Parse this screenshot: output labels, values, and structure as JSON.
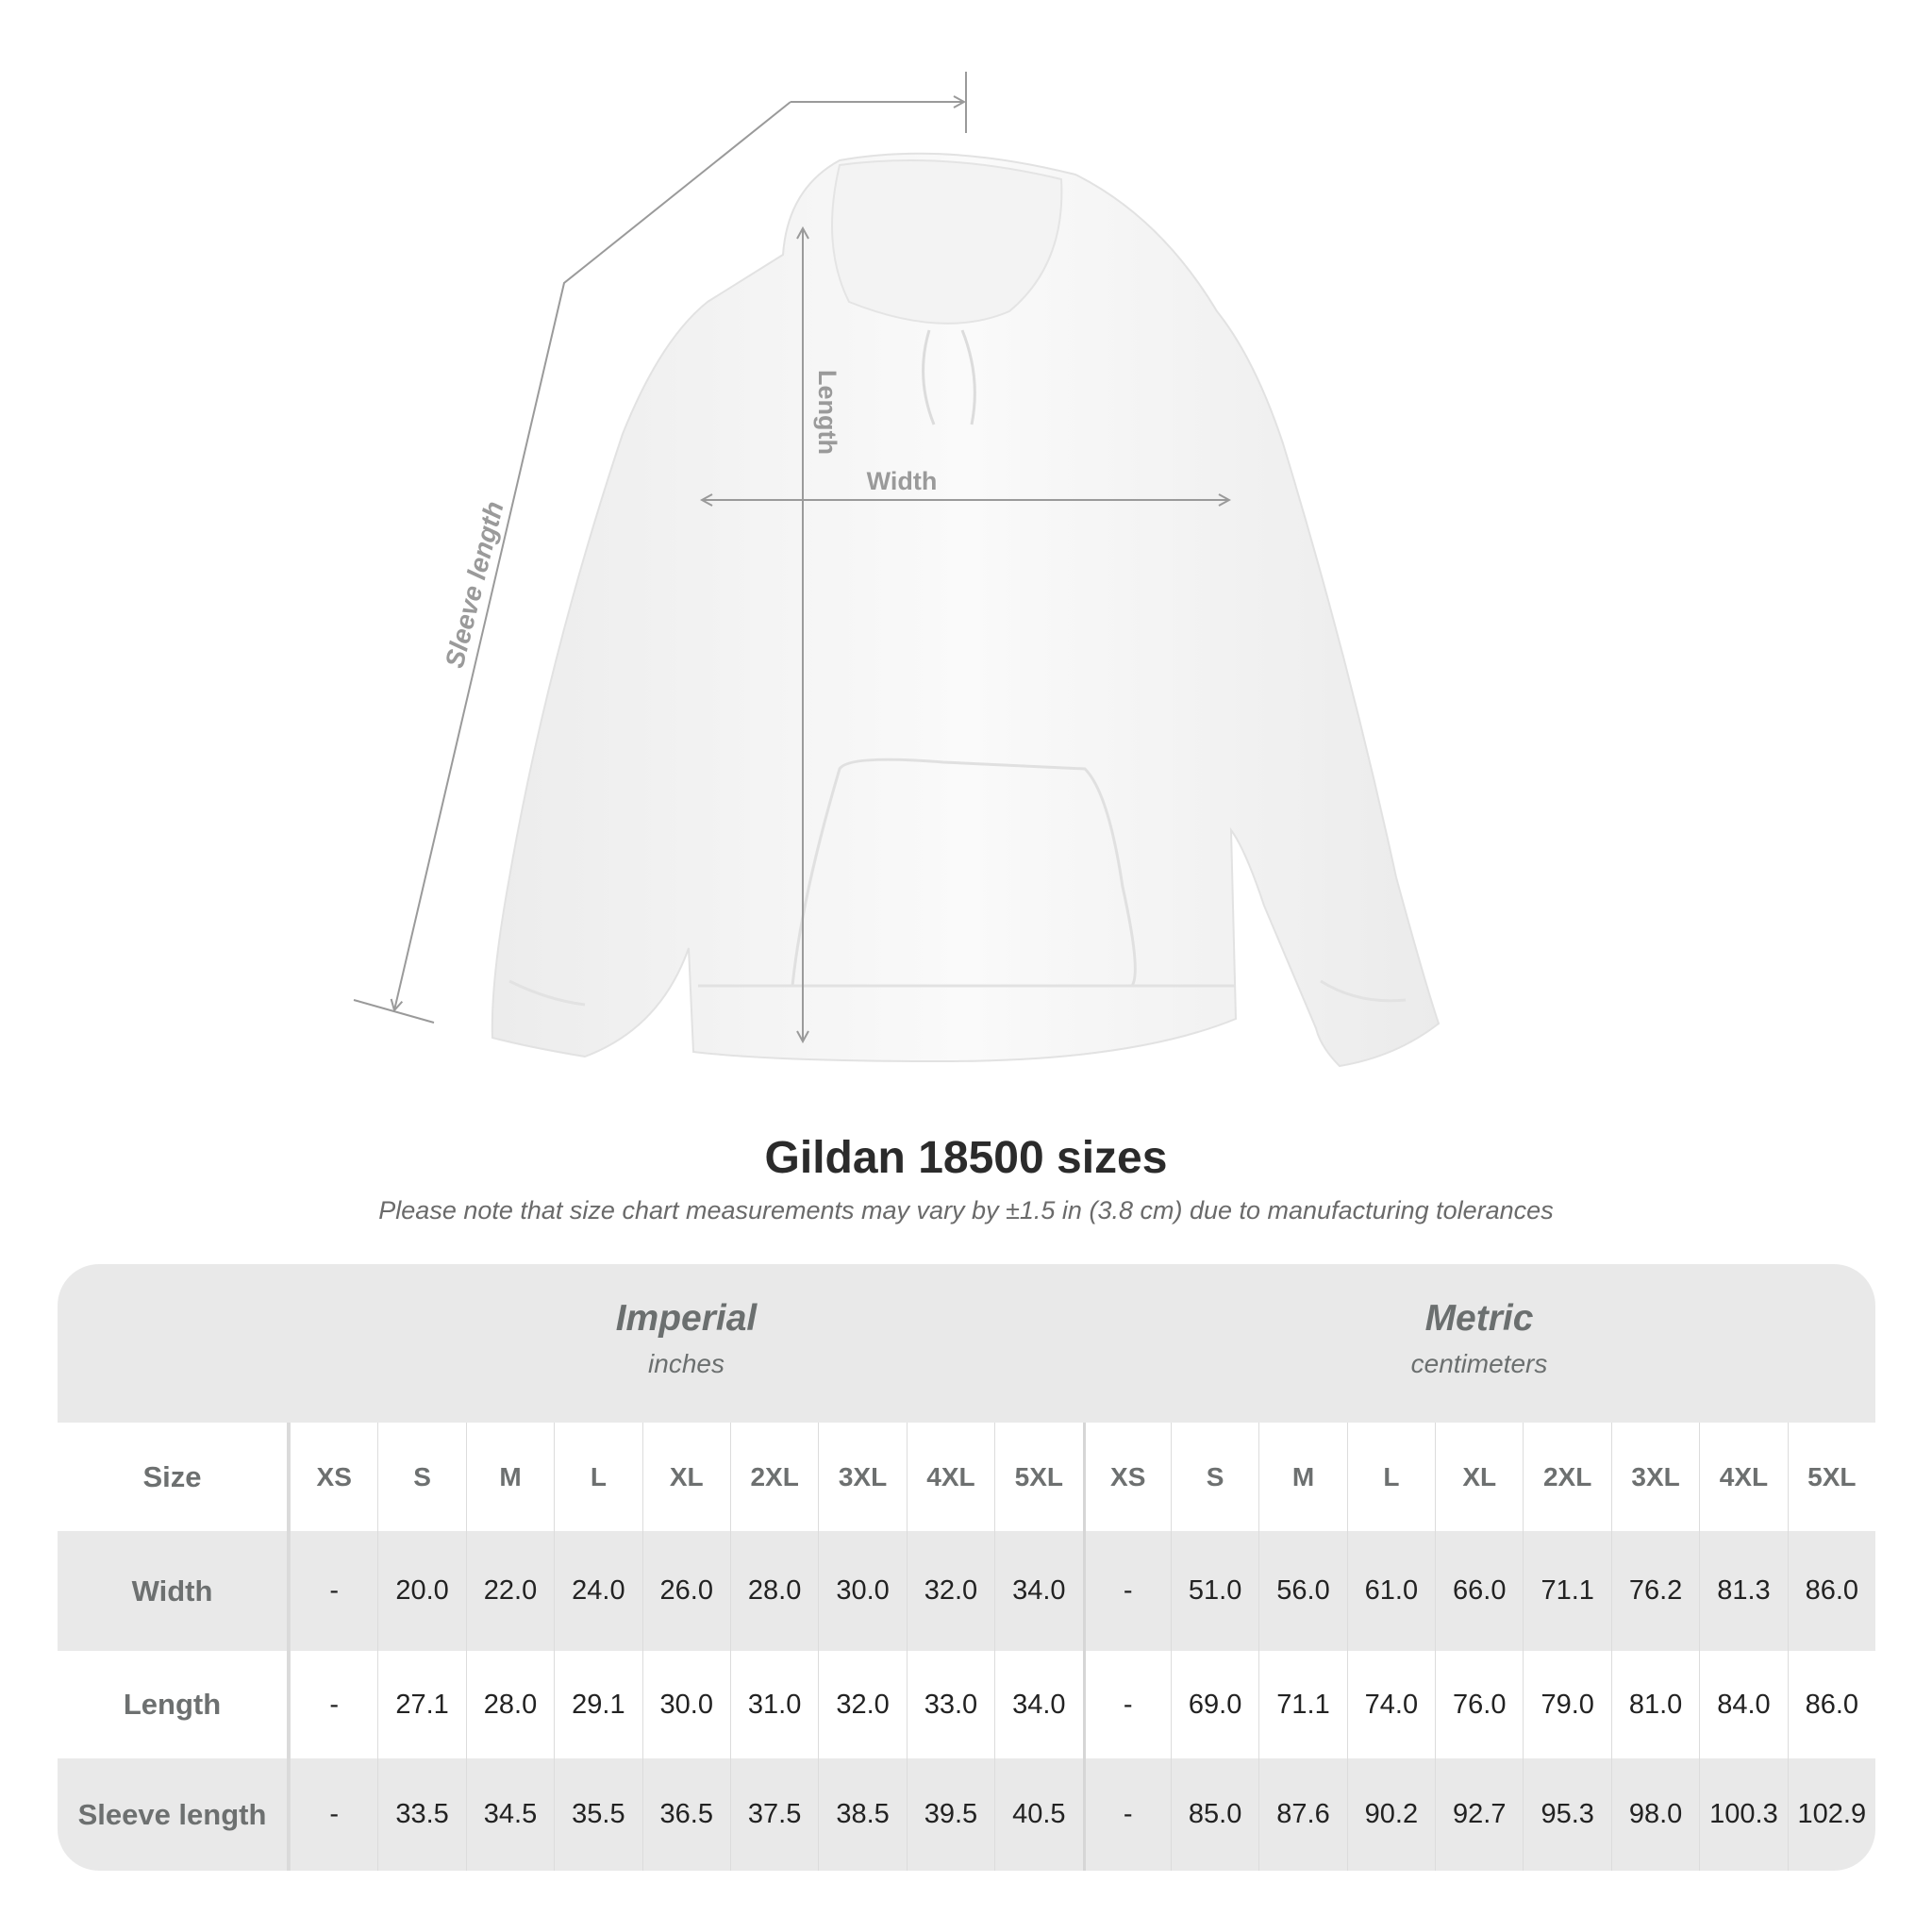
{
  "diagram_labels": {
    "length": "Length",
    "width": "Width",
    "sleeve_length": "Sleeve length"
  },
  "title": "Gildan 18500 sizes",
  "subtitle": "Please note that size chart measurements may vary by ±1.5 in (3.8 cm) due to manufacturing tolerances",
  "imperial": {
    "name": "Imperial",
    "unit": "inches"
  },
  "metric": {
    "name": "Metric",
    "unit": "centimeters"
  },
  "header_label": "Size",
  "sizes": [
    "XS",
    "S",
    "M",
    "L",
    "XL",
    "2XL",
    "3XL",
    "4XL",
    "5XL"
  ],
  "rows": [
    {
      "label": "Width",
      "imperial": [
        "-",
        "20.0",
        "22.0",
        "24.0",
        "26.0",
        "28.0",
        "30.0",
        "32.0",
        "34.0"
      ],
      "metric": [
        "-",
        "51.0",
        "56.0",
        "61.0",
        "66.0",
        "71.1",
        "76.2",
        "81.3",
        "86.0"
      ]
    },
    {
      "label": "Length",
      "imperial": [
        "-",
        "27.1",
        "28.0",
        "29.1",
        "30.0",
        "31.0",
        "32.0",
        "33.0",
        "34.0"
      ],
      "metric": [
        "-",
        "69.0",
        "71.1",
        "74.0",
        "76.0",
        "79.0",
        "81.0",
        "84.0",
        "86.0"
      ]
    },
    {
      "label": "Sleeve length",
      "imperial": [
        "-",
        "33.5",
        "34.5",
        "35.5",
        "36.5",
        "37.5",
        "38.5",
        "39.5",
        "40.5"
      ],
      "metric": [
        "-",
        "85.0",
        "87.6",
        "90.2",
        "92.7",
        "95.3",
        "98.0",
        "100.3",
        "102.9"
      ]
    }
  ],
  "colors": {
    "table_bg": "#e9e9e9",
    "label_text": "#6d7070",
    "value_text": "#222222",
    "measure_line": "#9a9a9a"
  }
}
